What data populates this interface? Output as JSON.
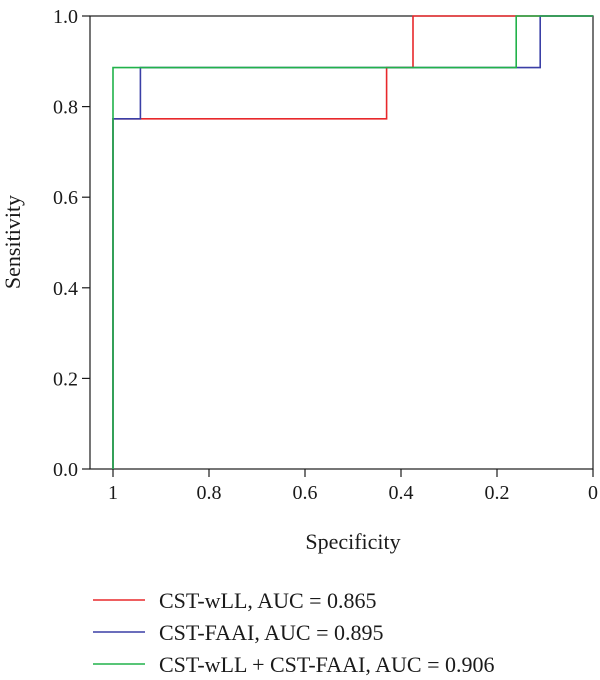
{
  "chart_data": {
    "type": "line",
    "title": "",
    "xlabel": "Specificity",
    "ylabel": "Sensitivity",
    "xlim": [
      1,
      0
    ],
    "ylim": [
      0,
      1
    ],
    "x_reversed": true,
    "x_ticks": [
      1,
      0.8,
      0.6,
      0.4,
      0.2,
      0
    ],
    "x_tick_labels": [
      "1",
      "0.8",
      "0.6",
      "0.4",
      "0.2",
      "0"
    ],
    "y_ticks": [
      0.0,
      0.2,
      0.4,
      0.6,
      0.8,
      1.0
    ],
    "y_tick_labels": [
      "0.0",
      "0.2",
      "0.4",
      "0.6",
      "0.8",
      "1.0"
    ],
    "grid": false,
    "legend_position": "bottom",
    "series": [
      {
        "name": "CST-wLL, AUC = 0.865",
        "color": "#e8282b",
        "points": [
          [
            1,
            0
          ],
          [
            1,
            0.773
          ],
          [
            0.43,
            0.773
          ],
          [
            0.43,
            0.886
          ],
          [
            0.375,
            0.886
          ],
          [
            0.375,
            1.0
          ],
          [
            0,
            1.0
          ]
        ]
      },
      {
        "name": "CST-FAAI, AUC = 0.895",
        "color": "#3a3fa6",
        "points": [
          [
            1,
            0
          ],
          [
            1,
            0.773
          ],
          [
            0.943,
            0.773
          ],
          [
            0.943,
            0.886
          ],
          [
            0.11,
            0.886
          ],
          [
            0.11,
            1.0
          ],
          [
            0,
            1.0
          ]
        ]
      },
      {
        "name": "CST-wLL + CST-FAAI, AUC = 0.906",
        "color": "#21b24a",
        "points": [
          [
            1,
            0
          ],
          [
            1,
            0.886
          ],
          [
            0.16,
            0.886
          ],
          [
            0.16,
            1.0
          ],
          [
            0,
            1.0
          ]
        ]
      }
    ]
  }
}
